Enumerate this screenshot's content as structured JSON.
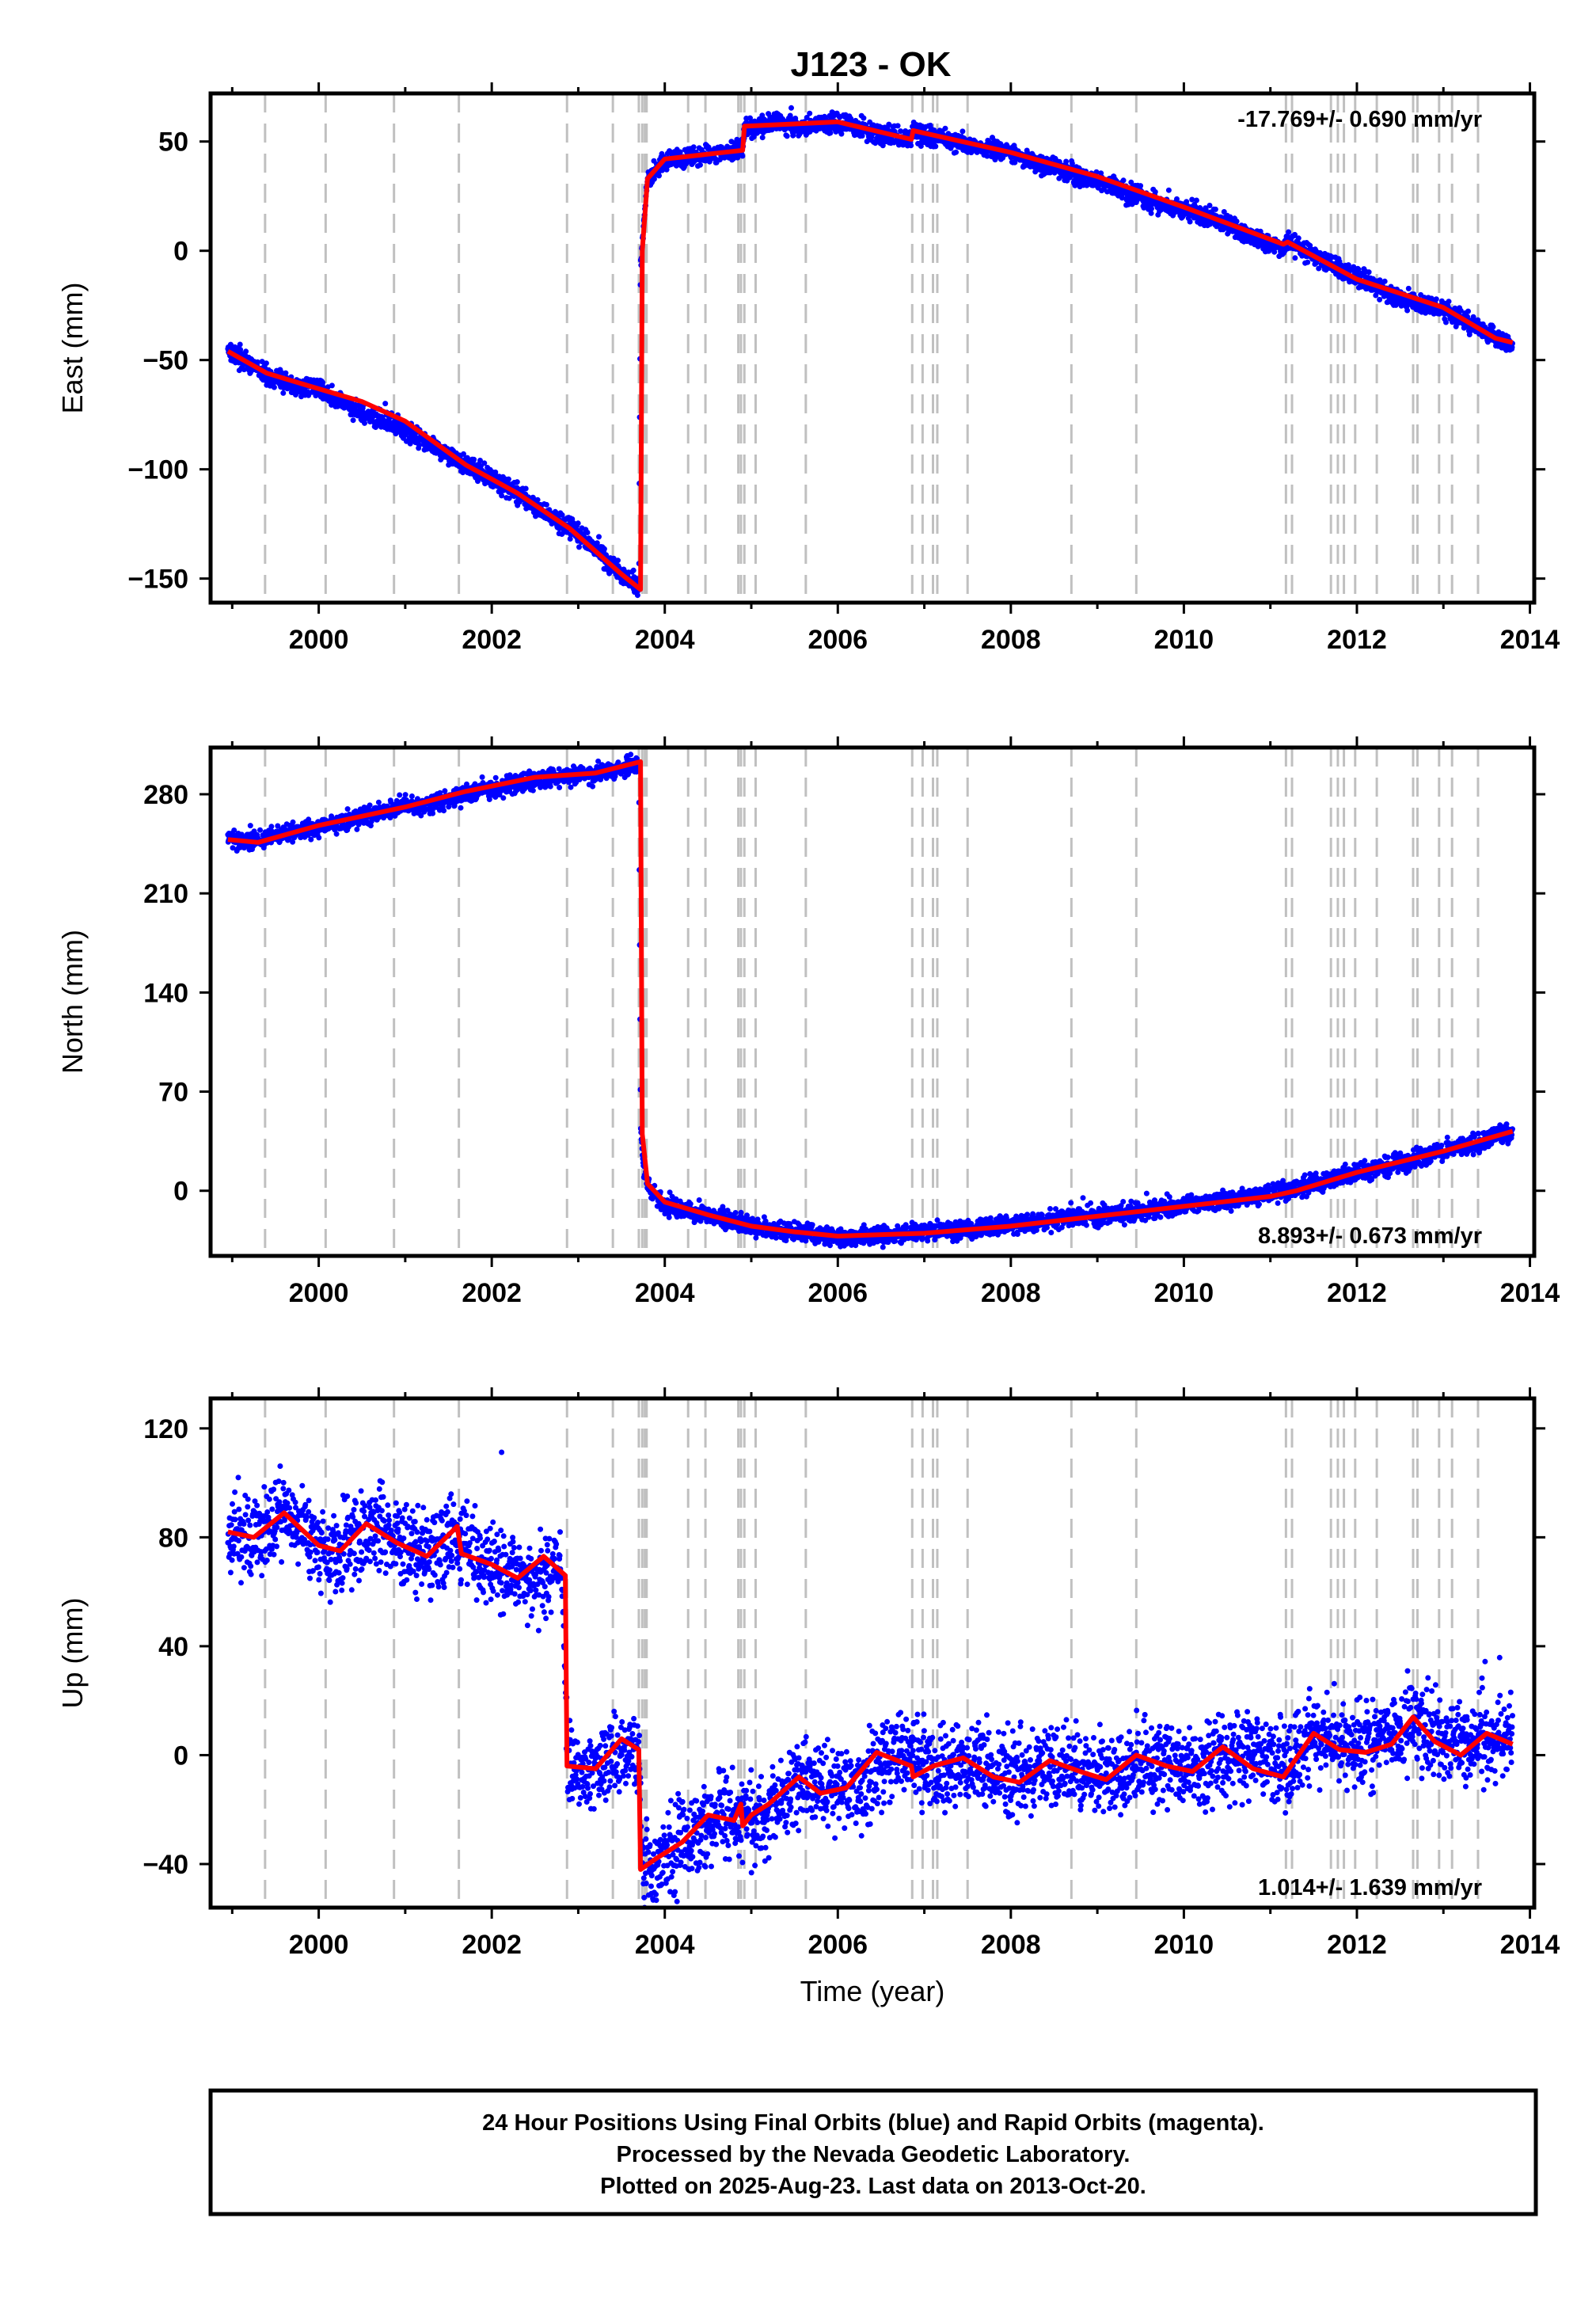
{
  "title": "J123 - OK",
  "chart_data": [
    {
      "type": "scatter",
      "component": "East",
      "ylabel": "East (mm)",
      "xlabel": "",
      "xlim": [
        1998.75,
        2014.05
      ],
      "ylim": [
        -161,
        72
      ],
      "xticks": [
        2000,
        2002,
        2004,
        2006,
        2008,
        2010,
        2012,
        2014
      ],
      "yticks": [
        -150,
        -100,
        -50,
        0,
        50
      ],
      "ytick_labels": [
        "−150",
        "−100",
        "−50",
        "0",
        "50"
      ],
      "rate_text": "-17.769+/- 0.690 mm/yr",
      "rate_position": "top-right",
      "grid": false,
      "series": [
        {
          "color": "#0000ff",
          "marker": "dot",
          "x": [
            1998.95,
            1999.2,
            1999.45,
            1999.7,
            2000.0,
            2000.3,
            2000.6,
            2000.9,
            2001.2,
            2001.5,
            2001.8,
            2002.1,
            2002.4,
            2002.7,
            2002.95,
            2003.2,
            2003.45,
            2003.7,
            2003.72,
            2003.8,
            2004.0,
            2004.3,
            2004.6,
            2004.9,
            2004.92,
            2005.2,
            2005.6,
            2006.0,
            2006.4,
            2006.85,
            2006.87,
            2007.2,
            2007.6,
            2008.0,
            2008.4,
            2008.8,
            2009.2,
            2009.6,
            2010.0,
            2010.4,
            2010.8,
            2011.15,
            2011.2,
            2011.5,
            2011.8,
            2012.1,
            2012.4,
            2012.7,
            2013.0,
            2013.3,
            2013.6,
            2013.8
          ],
          "y": [
            -45,
            -52,
            -58,
            -62,
            -63,
            -70,
            -76,
            -80,
            -86,
            -93,
            -100,
            -106,
            -114,
            -122,
            -128,
            -136,
            -146,
            -154,
            -5,
            32,
            41,
            43,
            44,
            47,
            56,
            58,
            57,
            59,
            54,
            51,
            55,
            51,
            48,
            45,
            39,
            34,
            29,
            22,
            19,
            14,
            6,
            1,
            5,
            -3,
            -8,
            -14,
            -21,
            -25,
            -27,
            -33,
            -40,
            -42
          ]
        },
        {
          "color": "#ff0000",
          "marker": "line",
          "x": [
            1998.95,
            1999.4,
            1999.9,
            2000.5,
            2001.0,
            2001.7,
            2002.3,
            2002.9,
            2003.5,
            2003.72,
            2003.74,
            2003.8,
            2004.0,
            2004.9,
            2004.92,
            2006.0,
            2006.85,
            2006.87,
            2008.0,
            2009.0,
            2010.0,
            2011.15,
            2011.2,
            2012.0,
            2013.0,
            2013.6,
            2013.8
          ],
          "y": [
            -46,
            -56,
            -62,
            -69,
            -78,
            -98,
            -111,
            -127,
            -148,
            -155,
            0,
            33,
            42,
            46,
            57,
            59,
            51,
            55,
            45,
            34,
            20,
            3,
            4,
            -13,
            -26,
            -40,
            -42
          ]
        }
      ]
    },
    {
      "type": "scatter",
      "component": "North",
      "ylabel": "North (mm)",
      "xlabel": "",
      "xlim": [
        1998.75,
        2014.05
      ],
      "ylim": [
        -46,
        313
      ],
      "xticks": [
        2000,
        2002,
        2004,
        2006,
        2008,
        2010,
        2012,
        2014
      ],
      "yticks": [
        0,
        70,
        140,
        210,
        280
      ],
      "ytick_labels": [
        "0",
        "70",
        "140",
        "210",
        "280"
      ],
      "rate_text": "8.893+/- 0.673 mm/yr",
      "rate_position": "bottom-right",
      "grid": false,
      "series": [
        {
          "color": "#0000ff",
          "marker": "dot",
          "x": [
            1998.95,
            1999.2,
            1999.5,
            1999.8,
            2000.1,
            2000.4,
            2000.7,
            2001.0,
            2001.3,
            2001.6,
            2001.9,
            2002.2,
            2002.5,
            2002.8,
            2003.1,
            2003.4,
            2003.7,
            2003.72,
            2003.76,
            2003.85,
            2004.0,
            2004.3,
            2004.6,
            2004.9,
            2005.2,
            2005.6,
            2006.0,
            2006.4,
            2006.8,
            2007.2,
            2007.6,
            2008.0,
            2008.4,
            2008.8,
            2009.2,
            2009.6,
            2010.0,
            2010.4,
            2010.8,
            2011.2,
            2011.5,
            2011.8,
            2012.1,
            2012.4,
            2012.7,
            2013.0,
            2013.3,
            2013.6,
            2013.8
          ],
          "y": [
            249,
            247,
            251,
            255,
            258,
            262,
            267,
            271,
            273,
            278,
            283,
            287,
            290,
            293,
            294,
            296,
            302,
            45,
            12,
            -2,
            -10,
            -16,
            -18,
            -23,
            -28,
            -30,
            -33,
            -32,
            -30,
            -28,
            -27,
            -24,
            -22,
            -18,
            -16,
            -13,
            -10,
            -7,
            -4,
            0,
            5,
            10,
            14,
            18,
            23,
            28,
            32,
            38,
            42
          ]
        },
        {
          "color": "#ff0000",
          "marker": "line",
          "x": [
            1998.95,
            1999.3,
            2000.0,
            2001.0,
            2001.7,
            2002.5,
            2003.2,
            2003.72,
            2003.74,
            2003.8,
            2004.0,
            2004.5,
            2005.0,
            2005.5,
            2006.0,
            2007.0,
            2008.0,
            2009.0,
            2010.0,
            2011.0,
            2011.3,
            2012.0,
            2013.0,
            2013.8
          ],
          "y": [
            248,
            246,
            258,
            271,
            282,
            292,
            295,
            303,
            40,
            5,
            -8,
            -17,
            -25,
            -29,
            -32,
            -30,
            -25,
            -18,
            -11,
            -4,
            0,
            13,
            28,
            42
          ]
        }
      ]
    },
    {
      "type": "scatter",
      "component": "Up",
      "ylabel": "Up (mm)",
      "xlabel": "Time (year)",
      "xlim": [
        1998.75,
        2014.05
      ],
      "ylim": [
        -56,
        131
      ],
      "xticks": [
        2000,
        2002,
        2004,
        2006,
        2008,
        2010,
        2012,
        2014
      ],
      "yticks": [
        -40,
        0,
        40,
        80,
        120
      ],
      "ytick_labels": [
        "−40",
        "0",
        "40",
        "80",
        "120"
      ],
      "rate_text": "1.014+/- 1.639 mm/yr",
      "rate_position": "bottom-right",
      "grid": false,
      "series": [
        {
          "color": "#0000ff",
          "marker": "dot",
          "x": [
            1998.95,
            1999.2,
            1999.5,
            1999.8,
            2000.1,
            2000.4,
            2000.7,
            2001.0,
            2001.3,
            2001.6,
            2001.9,
            2002.2,
            2002.5,
            2002.8,
            2002.88,
            2003.2,
            2003.5,
            2003.7,
            2003.75,
            2004.0,
            2004.3,
            2004.6,
            2004.9,
            2005.2,
            2005.6,
            2006.0,
            2006.4,
            2006.8,
            2007.2,
            2007.6,
            2008.0,
            2008.4,
            2008.8,
            2009.2,
            2009.6,
            2010.0,
            2010.4,
            2010.8,
            2011.2,
            2011.5,
            2011.8,
            2012.1,
            2012.4,
            2012.7,
            2013.0,
            2013.3,
            2013.6,
            2013.8
          ],
          "y": [
            82,
            79,
            88,
            84,
            76,
            78,
            84,
            77,
            73,
            82,
            70,
            68,
            64,
            72,
            -3,
            -5,
            4,
            0,
            -42,
            -38,
            -30,
            -20,
            -24,
            -22,
            -10,
            -14,
            -8,
            2,
            -7,
            -3,
            -9,
            -4,
            -6,
            -8,
            -3,
            -5,
            -2,
            2,
            -6,
            8,
            4,
            2,
            6,
            12,
            6,
            2,
            8,
            5
          ]
        },
        {
          "color": "#ff0000",
          "marker": "line",
          "x": [
            1998.95,
            1999.25,
            1999.6,
            2000.0,
            2000.25,
            2000.55,
            2000.9,
            2001.25,
            2001.6,
            2001.65,
            2002.0,
            2002.3,
            2002.6,
            2002.85,
            2002.87,
            2003.2,
            2003.5,
            2003.7,
            2003.72,
            2003.9,
            2004.2,
            2004.5,
            2004.8,
            2004.88,
            2004.9,
            2005.0,
            2005.2,
            2005.55,
            2005.8,
            2006.1,
            2006.45,
            2006.85,
            2006.87,
            2007.1,
            2007.45,
            2007.8,
            2008.1,
            2008.45,
            2008.8,
            2009.1,
            2009.45,
            2009.8,
            2010.1,
            2010.45,
            2010.8,
            2011.15,
            2011.5,
            2011.8,
            2012.1,
            2012.4,
            2012.65,
            2012.9,
            2013.2,
            2013.5,
            2013.8
          ],
          "y": [
            82,
            80,
            89,
            77,
            75,
            85,
            78,
            73,
            84,
            74,
            70,
            65,
            73,
            66,
            -4,
            -5,
            6,
            2,
            -42,
            -38,
            -32,
            -22,
            -24,
            -18,
            -26,
            -22,
            -18,
            -8,
            -14,
            -12,
            1,
            -4,
            -8,
            -4,
            -1,
            -8,
            -10,
            -2,
            -6,
            -9,
            0,
            -4,
            -6,
            3,
            -5,
            -8,
            8,
            2,
            1,
            4,
            14,
            5,
            0,
            8,
            4
          ]
        }
      ]
    }
  ],
  "offset_epochs": [
    1999.38,
    2000.08,
    2000.87,
    2001.62,
    2002.87,
    2003.4,
    2003.7,
    2003.74,
    2003.77,
    2003.79,
    2004.27,
    2004.47,
    2004.85,
    2004.88,
    2004.92,
    2005.05,
    2005.63,
    2006.86,
    2006.98,
    2007.1,
    2007.15,
    2007.5,
    2008.7,
    2009.45,
    2011.18,
    2011.25,
    2011.7,
    2011.78,
    2011.85,
    2011.98,
    2012.23,
    2012.65,
    2012.7,
    2012.95,
    2013.1,
    2013.4
  ],
  "colors": {
    "positions": "#0000ff",
    "model": "#ff0000",
    "offset_lines": "#c0c0c0",
    "frame": "#000000"
  },
  "footer": {
    "line1": "24 Hour Positions Using Final Orbits (blue) and Rapid Orbits (magenta).",
    "line2": "Processed by the Nevada Geodetic Laboratory.",
    "line3": "Plotted on 2025-Aug-23. Last data on 2013-Oct-20."
  }
}
